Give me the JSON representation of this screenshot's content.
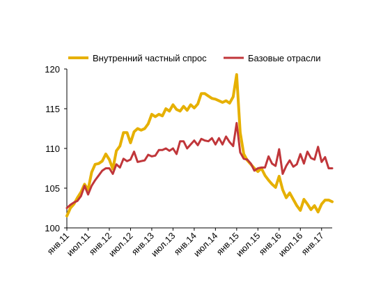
{
  "chart_data": {
    "type": "line",
    "title": "",
    "xlabel": "",
    "ylabel": "",
    "ylim": [
      100,
      120
    ],
    "yticks": [
      100,
      105,
      110,
      115,
      120
    ],
    "grid": false,
    "legend_position": "top",
    "x_tick_labels": [
      "янв.11",
      "июл.11",
      "янв.12",
      "июл.12",
      "янв.13",
      "июл.13",
      "янв.14",
      "июл.14",
      "янв.15",
      "июл.15",
      "янв.16",
      "июл.16",
      "янв.17"
    ],
    "series": [
      {
        "name": "Внутренний частный спрос",
        "color": "#e6b000",
        "values": [
          101.5,
          102.5,
          103.0,
          103.8,
          104.5,
          105.5,
          104.8,
          107.0,
          108.0,
          108.1,
          108.4,
          109.3,
          108.6,
          107.4,
          109.7,
          110.3,
          112.0,
          112.0,
          110.7,
          112.1,
          112.5,
          112.3,
          112.5,
          113.1,
          114.3,
          114.0,
          114.3,
          114.1,
          115.0,
          114.7,
          115.5,
          114.9,
          114.7,
          115.3,
          114.8,
          115.5,
          115.1,
          115.6,
          116.9,
          116.9,
          116.6,
          116.3,
          116.2,
          116.0,
          115.8,
          116.0,
          115.7,
          116.5,
          119.3,
          112.0,
          109.3,
          108.5,
          108.0,
          107.5,
          107.1,
          107.5,
          106.6,
          106.0,
          105.5,
          105.1,
          106.5,
          104.8,
          103.8,
          104.4,
          103.6,
          102.8,
          102.2,
          103.6,
          103.0,
          102.3,
          102.8,
          102.0,
          103.0,
          103.5,
          103.5,
          103.3
        ]
      },
      {
        "name": "Базовые отрасли",
        "color": "#c0363a",
        "values": [
          102.5,
          102.9,
          103.2,
          103.4,
          104.0,
          105.3,
          104.2,
          105.3,
          106.0,
          106.6,
          107.2,
          107.5,
          107.5,
          106.8,
          108.0,
          107.6,
          108.7,
          108.4,
          108.6,
          109.6,
          108.3,
          108.4,
          108.5,
          109.2,
          109.0,
          109.1,
          109.8,
          109.8,
          110.0,
          109.7,
          110.0,
          109.3,
          110.9,
          110.9,
          110.0,
          110.5,
          111.0,
          110.4,
          111.2,
          111.0,
          110.9,
          111.3,
          110.5,
          111.3,
          110.5,
          111.5,
          110.8,
          110.3,
          113.2,
          109.5,
          108.7,
          108.6,
          108.1,
          107.2,
          107.5,
          107.6,
          107.6,
          109.0,
          108.1,
          107.8,
          109.9,
          106.8,
          107.8,
          108.5,
          107.7,
          108.0,
          109.3,
          108.1,
          109.6,
          108.8,
          108.6,
          110.2,
          108.3,
          108.9,
          107.5,
          107.5
        ]
      }
    ]
  }
}
